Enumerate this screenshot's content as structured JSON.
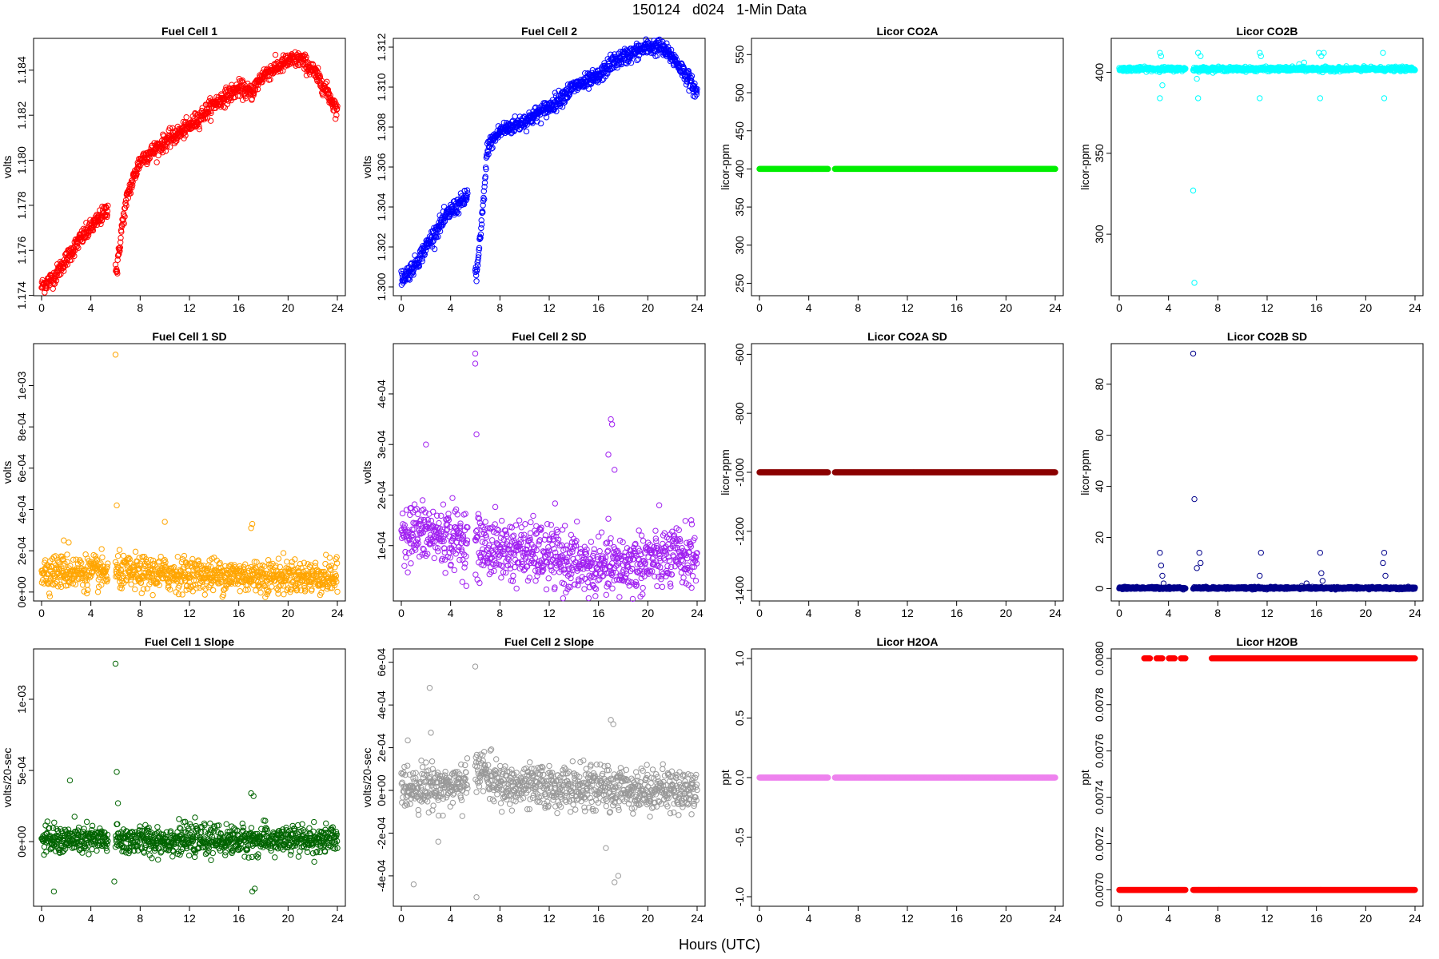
{
  "title": "150124   d024   1-Min Data",
  "xlabel": "Hours (UTC)",
  "x_ticks": [
    "0",
    "4",
    "8",
    "12",
    "16",
    "20",
    "24"
  ],
  "chart_data": [
    {
      "type": "scatter",
      "title": "Fuel Cell 1",
      "ylabel": "volts",
      "color": "#ff0000",
      "xlim": [
        0,
        24
      ],
      "ylim": [
        1.1742,
        1.1852
      ],
      "yticks": [
        1.174,
        1.176,
        1.178,
        1.18,
        1.182,
        1.184
      ],
      "ytick_labels": [
        "1.174",
        "1.176",
        "1.178",
        "1.180",
        "1.182",
        "1.184"
      ],
      "series": [
        {
          "values_xy": [
            [
              0,
              1.1744
            ],
            [
              1,
              1.1748
            ],
            [
              2,
              1.1756
            ],
            [
              3,
              1.1764
            ],
            [
              4,
              1.177
            ],
            [
              5,
              1.1776
            ],
            [
              5.4,
              1.1779
            ],
            [
              6.1,
              1.175
            ],
            [
              6.5,
              1.177
            ],
            [
              7,
              1.1785
            ],
            [
              8,
              1.18
            ],
            [
              10,
              1.1808
            ],
            [
              12,
              1.1815
            ],
            [
              14,
              1.1825
            ],
            [
              16,
              1.1832
            ],
            [
              17,
              1.183
            ],
            [
              18,
              1.1838
            ],
            [
              20,
              1.1844
            ],
            [
              21,
              1.1845
            ],
            [
              22,
              1.184
            ],
            [
              23,
              1.1832
            ],
            [
              24,
              1.1822
            ]
          ],
          "noise": 0.00018,
          "gap": [
            5.4,
            6.0
          ]
        }
      ]
    },
    {
      "type": "scatter",
      "title": "Fuel Cell 2",
      "ylabel": "volts",
      "color": "#0000ff",
      "xlim": [
        0,
        24
      ],
      "ylim": [
        1.2998,
        1.3122
      ],
      "yticks": [
        1.3,
        1.302,
        1.304,
        1.306,
        1.308,
        1.31,
        1.312
      ],
      "ytick_labels": [
        "1.300",
        "1.302",
        "1.304",
        "1.306",
        "1.308",
        "1.310",
        "1.312"
      ],
      "series": [
        {
          "values_xy": [
            [
              0,
              1.3004
            ],
            [
              1,
              1.301
            ],
            [
              2,
              1.302
            ],
            [
              3,
              1.303
            ],
            [
              4,
              1.3038
            ],
            [
              5,
              1.3043
            ],
            [
              5.4,
              1.3046
            ],
            [
              6.1,
              1.3005
            ],
            [
              6.5,
              1.303
            ],
            [
              7,
              1.307
            ],
            [
              8,
              1.3078
            ],
            [
              10,
              1.3083
            ],
            [
              12,
              1.309
            ],
            [
              14,
              1.31
            ],
            [
              16,
              1.3105
            ],
            [
              17,
              1.3112
            ],
            [
              18,
              1.3115
            ],
            [
              20,
              1.312
            ],
            [
              21,
              1.312
            ],
            [
              22,
              1.3115
            ],
            [
              23,
              1.3107
            ],
            [
              24,
              1.3097
            ]
          ],
          "noise": 0.0002,
          "gap": [
            5.4,
            6.0
          ]
        }
      ]
    },
    {
      "type": "scatter",
      "title": "Licor CO2A",
      "ylabel": "licor-ppm",
      "color": "#00ee00",
      "xlim": [
        0,
        24
      ],
      "ylim": [
        240,
        565
      ],
      "yticks": [
        250,
        300,
        350,
        400,
        450,
        500,
        550
      ],
      "ytick_labels": [
        "250",
        "300",
        "350",
        "400",
        "450",
        "500",
        "550"
      ],
      "series": [
        {
          "values_xy": [
            [
              0,
              400
            ],
            [
              24,
              400
            ]
          ],
          "noise": 0,
          "gap": [
            5.6,
            6.1
          ],
          "thick": true
        }
      ]
    },
    {
      "type": "scatter",
      "title": "Licor CO2B",
      "ylabel": "licor-ppm",
      "color": "#00ffff",
      "xlim": [
        0,
        24
      ],
      "ylim": [
        265,
        418
      ],
      "yticks": [
        300,
        350,
        400
      ],
      "ytick_labels": [
        "300",
        "350",
        "400"
      ],
      "series": [
        {
          "values_xy": [
            [
              0,
              402
            ],
            [
              24,
              402
            ]
          ],
          "noise": 0.6,
          "gap": [
            5.4,
            6.0
          ],
          "outliers": [
            [
              3.3,
              412
            ],
            [
              3.3,
              384
            ],
            [
              3.4,
              410
            ],
            [
              3.5,
              392
            ],
            [
              6.0,
              327
            ],
            [
              6.1,
              270
            ],
            [
              6.3,
              396
            ],
            [
              6.4,
              412
            ],
            [
              6.4,
              384
            ],
            [
              6.6,
              410
            ],
            [
              11.4,
              412
            ],
            [
              11.4,
              384
            ],
            [
              11.5,
              410
            ],
            [
              14.6,
              405
            ],
            [
              15.0,
              406
            ],
            [
              16.2,
              412
            ],
            [
              16.3,
              384
            ],
            [
              16.4,
              410
            ],
            [
              16.5,
              400
            ],
            [
              16.6,
              412
            ],
            [
              21.4,
              412
            ],
            [
              21.5,
              384
            ]
          ]
        }
      ]
    },
    {
      "type": "scatter",
      "title": "Fuel Cell 1 SD",
      "ylabel": "volts",
      "color": "#ffa500",
      "xlim": [
        0,
        24
      ],
      "ylim": [
        -2e-05,
        0.00118
      ],
      "yticks": [
        0,
        0.0002,
        0.0004,
        0.0006,
        0.0008,
        0.001
      ],
      "ytick_labels": [
        "0e+00",
        "2e-04",
        "4e-04",
        "6e-04",
        "8e-04",
        "1e-03"
      ],
      "series": [
        {
          "values_xy": [
            [
              0,
              0.0001
            ],
            [
              24,
              7e-05
            ]
          ],
          "noise": 4e-05,
          "gap": [
            5.4,
            6.0
          ],
          "outliers": [
            [
              6.0,
              0.00115
            ],
            [
              6.1,
              0.00042
            ],
            [
              10.0,
              0.00034
            ],
            [
              17.1,
              0.00033
            ],
            [
              17.0,
              0.00031
            ],
            [
              1.8,
              0.00025
            ],
            [
              2.2,
              0.00024
            ]
          ]
        }
      ]
    },
    {
      "type": "scatter",
      "title": "Fuel Cell 2 SD",
      "ylabel": "volts",
      "color": "#a020f0",
      "xlim": [
        0,
        24
      ],
      "ylim": [
        0.0,
        0.00049
      ],
      "yticks": [
        0.0001,
        0.0002,
        0.0003,
        0.0004
      ],
      "ytick_labels": [
        "1e-04",
        "2e-04",
        "3e-04",
        "4e-04"
      ],
      "series": [
        {
          "values_xy": [
            [
              0,
              0.00013
            ],
            [
              3,
              0.00012
            ],
            [
              5.4,
              0.00011
            ],
            [
              6,
              0.0001
            ],
            [
              12,
              8e-05
            ],
            [
              16,
              5e-05
            ],
            [
              20,
              7e-05
            ],
            [
              24,
              8e-05
            ]
          ],
          "noise": 3e-05,
          "gap": [
            5.4,
            6.0
          ],
          "outliers": [
            [
              6.0,
              0.00048
            ],
            [
              6.0,
              0.00046
            ],
            [
              6.1,
              0.00032
            ],
            [
              2.0,
              0.0003
            ],
            [
              17.0,
              0.00035
            ],
            [
              17.1,
              0.00034
            ],
            [
              16.8,
              0.00028
            ],
            [
              17.3,
              0.00025
            ]
          ]
        }
      ]
    },
    {
      "type": "scatter",
      "title": "Licor CO2A SD",
      "ylabel": "licor-ppm",
      "color": "#8b0000",
      "xlim": [
        0,
        24
      ],
      "ylim": [
        -1420,
        -580
      ],
      "yticks": [
        -1400,
        -1200,
        -1000,
        -800,
        -600
      ],
      "ytick_labels": [
        "-1400",
        "-1200",
        "-1000",
        "-800",
        "-600"
      ],
      "series": [
        {
          "values_xy": [
            [
              0,
              -1000
            ],
            [
              24,
              -1000
            ]
          ],
          "noise": 0,
          "gap": [
            5.6,
            6.1
          ],
          "thick": true
        }
      ]
    },
    {
      "type": "scatter",
      "title": "Licor CO2B SD",
      "ylabel": "licor-ppm",
      "color": "#00008b",
      "xlim": [
        0,
        24
      ],
      "ylim": [
        -3,
        94
      ],
      "yticks": [
        0,
        20,
        40,
        60,
        80
      ],
      "ytick_labels": [
        "0",
        "20",
        "40",
        "60",
        "80"
      ],
      "series": [
        {
          "values_xy": [
            [
              0,
              0.2
            ],
            [
              24,
              0.2
            ]
          ],
          "noise": 0.2,
          "gap": [
            5.4,
            6.0
          ],
          "outliers": [
            [
              6.0,
              92
            ],
            [
              6.1,
              35
            ],
            [
              3.3,
              14
            ],
            [
              3.4,
              9
            ],
            [
              3.5,
              5
            ],
            [
              3.6,
              2
            ],
            [
              6.3,
              8
            ],
            [
              6.5,
              14
            ],
            [
              6.6,
              10
            ],
            [
              11.5,
              14
            ],
            [
              11.4,
              5
            ],
            [
              14.8,
              1
            ],
            [
              15.2,
              2
            ],
            [
              16.3,
              14
            ],
            [
              16.4,
              6
            ],
            [
              16.5,
              3
            ],
            [
              21.5,
              14
            ],
            [
              21.4,
              10
            ],
            [
              21.6,
              5
            ]
          ]
        }
      ]
    },
    {
      "type": "scatter",
      "title": "Fuel Cell 1 Slope",
      "ylabel": "volts/20-sec",
      "color": "#006400",
      "xlim": [
        0,
        24
      ],
      "ylim": [
        -0.00042,
        0.00132
      ],
      "yticks": [
        0,
        0.0005,
        0.001
      ],
      "ytick_labels": [
        "0e+00",
        "5e-04",
        "1e-03"
      ],
      "series": [
        {
          "values_xy": [
            [
              0,
              1e-05
            ],
            [
              24,
              1e-05
            ]
          ],
          "noise": 5e-05,
          "gap": [
            5.4,
            6.0
          ],
          "outliers": [
            [
              6.0,
              0.00125
            ],
            [
              6.1,
              0.00049
            ],
            [
              2.3,
              0.00043
            ],
            [
              1.0,
              -0.00035
            ],
            [
              6.2,
              0.00027
            ],
            [
              17.0,
              0.00034
            ],
            [
              17.2,
              0.00032
            ],
            [
              17.3,
              -0.00033
            ],
            [
              17.1,
              -0.00035
            ],
            [
              5.9,
              -0.00028
            ]
          ]
        }
      ]
    },
    {
      "type": "scatter",
      "title": "Fuel Cell 2 Slope",
      "ylabel": "volts/20-sec",
      "color": "#999999",
      "xlim": [
        0,
        24
      ],
      "ylim": [
        -0.00052,
        0.00064
      ],
      "yticks": [
        -0.0004,
        -0.0002,
        0,
        0.0002,
        0.0004,
        0.0006
      ],
      "ytick_labels": [
        "-4e-04",
        "-2e-04",
        "0e+00",
        "2e-04",
        "4e-04",
        "6e-04"
      ],
      "series": [
        {
          "values_xy": [
            [
              0,
              2e-05
            ],
            [
              5.4,
              2e-05
            ],
            [
              6,
              0.00012
            ],
            [
              8,
              2e-05
            ],
            [
              24,
              0.0
            ]
          ],
          "noise": 5e-05,
          "gap": [
            5.4,
            6.0
          ],
          "outliers": [
            [
              6.0,
              0.00058
            ],
            [
              6.1,
              -0.0005
            ],
            [
              2.3,
              0.00048
            ],
            [
              2.4,
              0.00027
            ],
            [
              1.0,
              -0.00044
            ],
            [
              3.0,
              -0.00024
            ],
            [
              17.0,
              0.00033
            ],
            [
              17.2,
              0.00031
            ],
            [
              17.3,
              -0.00043
            ],
            [
              17.6,
              -0.0004
            ],
            [
              16.6,
              -0.00027
            ]
          ]
        }
      ]
    },
    {
      "type": "scatter",
      "title": "Licor H2OA",
      "ylabel": "ppt",
      "color": "#ee82ee",
      "xlim": [
        0,
        24
      ],
      "ylim": [
        -1.04,
        1.04
      ],
      "yticks": [
        -1,
        -0.5,
        0,
        0.5,
        1
      ],
      "ytick_labels": [
        "-1.0",
        "-0.5",
        "0.0",
        "0.5",
        "1.0"
      ],
      "series": [
        {
          "values_xy": [
            [
              0,
              0
            ],
            [
              24,
              0
            ]
          ],
          "noise": 0,
          "gap": [
            5.6,
            6.1
          ],
          "thick": true
        }
      ]
    },
    {
      "type": "scatter",
      "title": "Licor H2OB",
      "ylabel": "ppt",
      "color": "#ff0000",
      "xlim": [
        0,
        24
      ],
      "ylim": [
        0.00695,
        0.00802
      ],
      "yticks": [
        0.007,
        0.0072,
        0.0074,
        0.0076,
        0.0078,
        0.008
      ],
      "ytick_labels": [
        "0.0070",
        "0.0072",
        "0.0074",
        "0.0076",
        "0.0078",
        "0.0080"
      ],
      "series": [
        {
          "values_xy": [
            [
              0,
              0.007
            ],
            [
              24,
              0.007
            ]
          ],
          "noise": 0,
          "gap": [
            5.4,
            6.0
          ],
          "two_level": [
            0.007,
            0.008
          ]
        }
      ]
    }
  ]
}
